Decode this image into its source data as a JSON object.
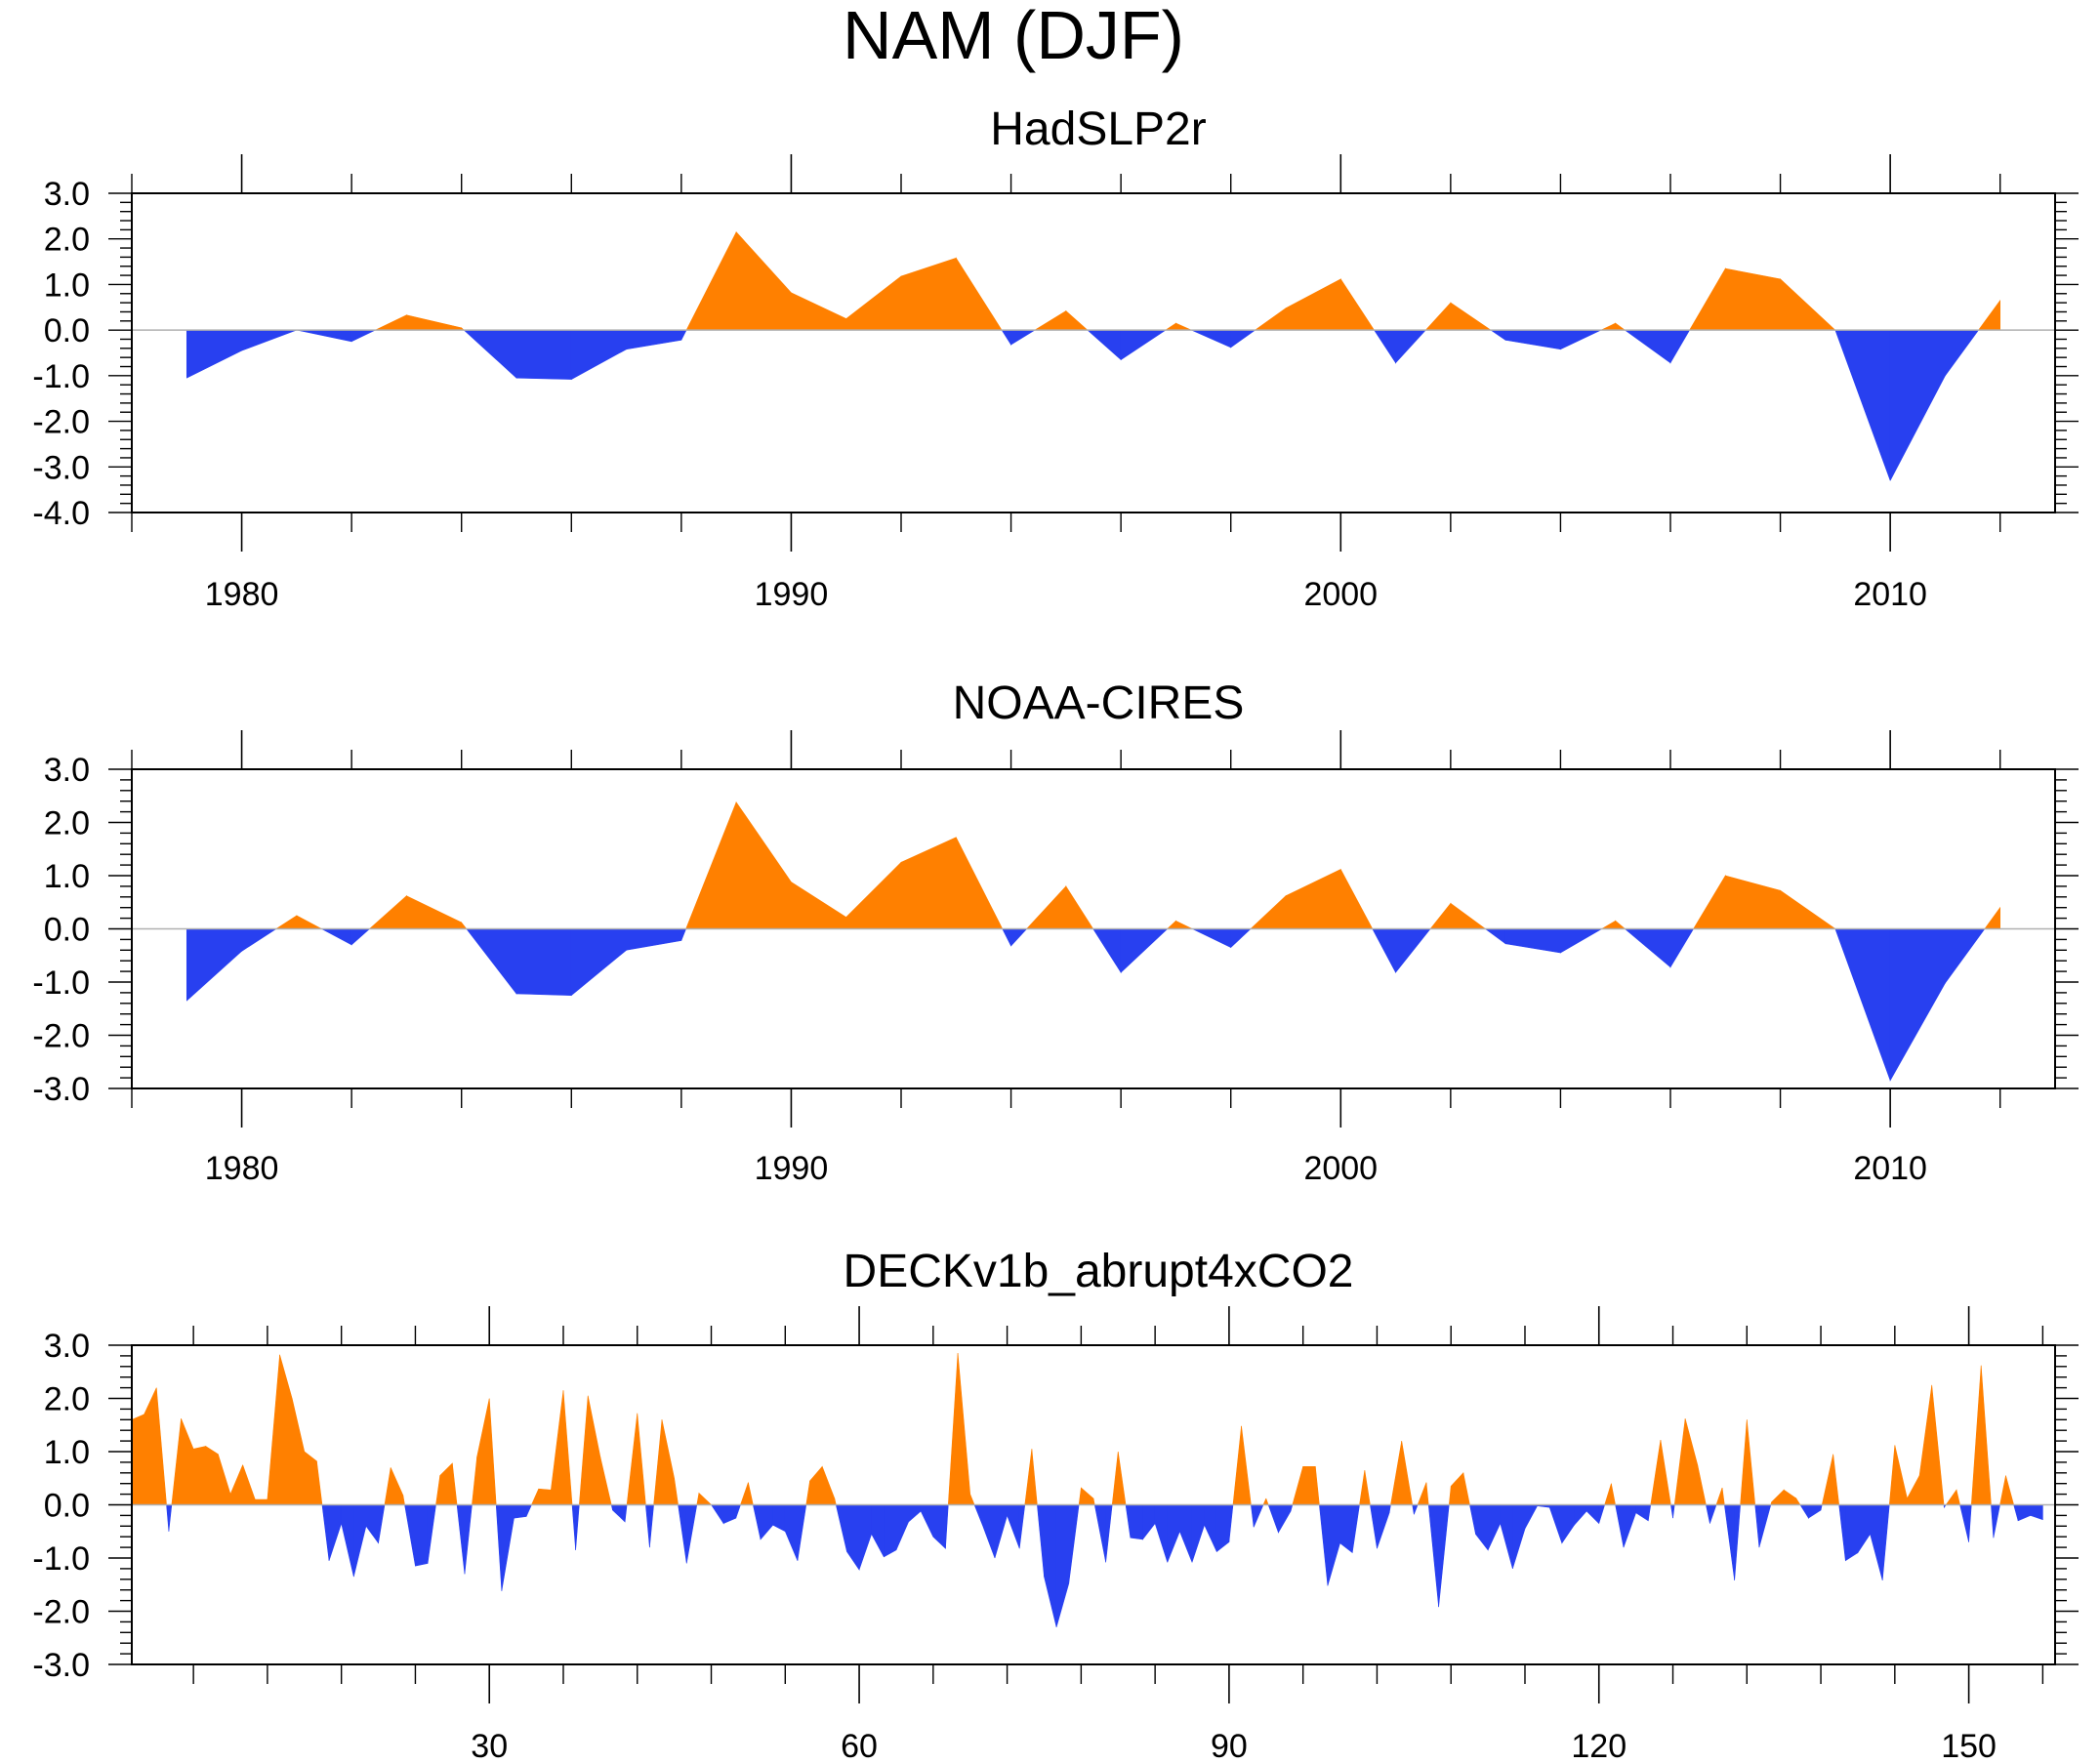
{
  "title": "NAM (DJF)",
  "colors": {
    "positive": "#ff8000",
    "negative": "#2840f0",
    "axis": "#000000",
    "zero_line": "#b0b0b0"
  },
  "chart_data": [
    {
      "type": "area",
      "title": "HadSLP2r",
      "xlabel": "",
      "ylabel": "",
      "xlim": [
        1978,
        2013
      ],
      "ylim": [
        -4,
        3
      ],
      "yticks": [
        "3.0",
        "2.0",
        "1.0",
        "0.0",
        "-1.0",
        "-2.0",
        "-3.0",
        "-4.0"
      ],
      "xticks": [
        1980,
        1990,
        2000,
        2010
      ],
      "x": [
        1979,
        1980,
        1981,
        1982,
        1983,
        1984,
        1985,
        1986,
        1987,
        1988,
        1989,
        1990,
        1991,
        1992,
        1993,
        1994,
        1995,
        1996,
        1997,
        1998,
        1999,
        2000,
        2001,
        2002,
        2003,
        2004,
        2005,
        2006,
        2007,
        2008,
        2009,
        2010,
        2011,
        2012
      ],
      "values": [
        -1.05,
        -0.45,
        0.0,
        -0.25,
        0.33,
        0.05,
        -1.05,
        -1.08,
        -0.42,
        -0.22,
        2.15,
        0.82,
        0.25,
        1.18,
        1.58,
        -0.32,
        0.42,
        -0.65,
        0.15,
        -0.38,
        0.48,
        1.12,
        -0.72,
        0.6,
        -0.22,
        -0.42,
        0.15,
        -0.72,
        1.35,
        1.12,
        0.0,
        -3.3,
        -1.0,
        0.65
      ]
    },
    {
      "type": "area",
      "title": "NOAA-CIRES",
      "xlabel": "",
      "ylabel": "",
      "xlim": [
        1978,
        2013
      ],
      "ylim": [
        -3,
        3
      ],
      "yticks": [
        "3.0",
        "2.0",
        "1.0",
        "0.0",
        "-1.0",
        "-2.0",
        "-3.0"
      ],
      "xticks": [
        1980,
        1990,
        2000,
        2010
      ],
      "x": [
        1979,
        1980,
        1981,
        1982,
        1983,
        1984,
        1985,
        1986,
        1987,
        1988,
        1989,
        1990,
        1991,
        1992,
        1993,
        1994,
        1995,
        1996,
        1997,
        1998,
        1999,
        2000,
        2001,
        2002,
        2003,
        2004,
        2005,
        2006,
        2007,
        2008,
        2009,
        2010,
        2011,
        2012
      ],
      "values": [
        -1.35,
        -0.42,
        0.25,
        -0.3,
        0.62,
        0.12,
        -1.22,
        -1.25,
        -0.4,
        -0.22,
        2.38,
        0.88,
        0.22,
        1.25,
        1.72,
        -0.32,
        0.8,
        -0.82,
        0.15,
        -0.35,
        0.62,
        1.12,
        -0.82,
        0.48,
        -0.28,
        -0.45,
        0.15,
        -0.72,
        1.0,
        0.72,
        0.0,
        -2.85,
        -1.02,
        0.4
      ]
    },
    {
      "type": "area",
      "title": "DECKv1b_abrupt4xCO2",
      "xlabel": "",
      "ylabel": "",
      "xlim": [
        1,
        157
      ],
      "ylim": [
        -3,
        3
      ],
      "yticks": [
        "3.0",
        "2.0",
        "1.0",
        "0.0",
        "-1.0",
        "-2.0",
        "-3.0"
      ],
      "xticks": [
        30,
        60,
        90,
        120,
        150
      ],
      "x_start": 1,
      "values": [
        1.6,
        1.7,
        2.2,
        -0.5,
        1.62,
        1.05,
        1.1,
        0.95,
        0.2,
        0.75,
        0.1,
        0.1,
        2.82,
        2.0,
        1.0,
        0.82,
        -1.05,
        -0.35,
        -1.35,
        -0.4,
        -0.72,
        0.7,
        0.18,
        -1.15,
        -1.1,
        0.55,
        0.78,
        -1.3,
        0.9,
        2.0,
        -1.62,
        -0.25,
        -0.22,
        0.3,
        0.28,
        2.15,
        -0.85,
        2.05,
        0.9,
        -0.1,
        -0.32,
        1.72,
        -0.8,
        1.6,
        0.5,
        -1.1,
        0.22,
        0.0,
        -0.35,
        -0.25,
        0.42,
        -0.65,
        -0.38,
        -0.5,
        -1.05,
        0.45,
        0.72,
        0.12,
        -0.88,
        -1.22,
        -0.55,
        -0.98,
        -0.85,
        -0.32,
        -0.12,
        -0.6,
        -0.82,
        2.85,
        0.2,
        -0.38,
        -1.0,
        -0.2,
        -0.82,
        1.05,
        -1.35,
        -2.3,
        -1.48,
        0.32,
        0.12,
        -1.08,
        1.0,
        -0.62,
        -0.65,
        -0.35,
        -1.08,
        -0.5,
        -1.08,
        -0.38,
        -0.88,
        -0.7,
        1.48,
        -0.42,
        0.12,
        -0.52,
        -0.12,
        0.72,
        0.72,
        -1.52,
        -0.72,
        -0.9,
        0.65,
        -0.82,
        -0.15,
        1.2,
        -0.18,
        0.42,
        -1.92,
        0.35,
        0.6,
        -0.55,
        -0.85,
        -0.35,
        -1.2,
        -0.45,
        -0.02,
        -0.05,
        -0.72,
        -0.38,
        -0.12,
        -0.35,
        0.4,
        -0.8,
        -0.15,
        -0.3,
        1.22,
        -0.25,
        1.62,
        0.75,
        -0.35,
        0.32,
        -1.42,
        1.6,
        -0.8,
        0.05,
        0.28,
        0.12,
        -0.25,
        -0.1,
        0.95,
        -1.05,
        -0.9,
        -0.55,
        -1.42,
        1.12,
        0.12,
        0.55,
        2.25,
        -0.05,
        0.28,
        -0.7,
        2.62,
        -0.62,
        0.55,
        -0.3,
        -0.2,
        -0.28
      ]
    }
  ]
}
